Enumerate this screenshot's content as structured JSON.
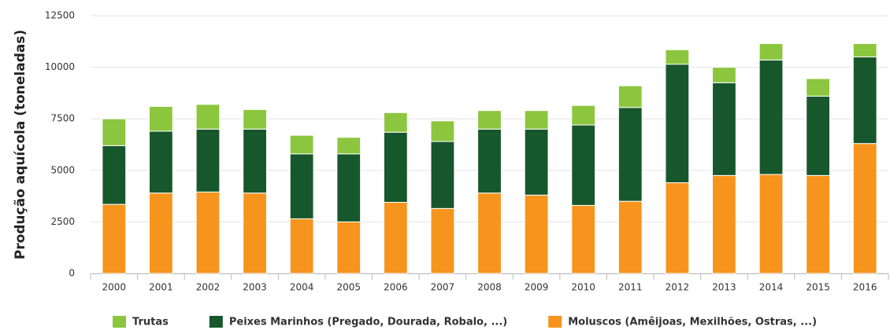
{
  "chart_data": {
    "type": "stacked_bar",
    "y_label": "Produção aquícola (toneladas)",
    "categories": [
      "2000",
      "2001",
      "2002",
      "2003",
      "2004",
      "2005",
      "2006",
      "2007",
      "2008",
      "2009",
      "2010",
      "2011",
      "2012",
      "2013",
      "2014",
      "2015",
      "2016"
    ],
    "series": [
      {
        "name": "Trutas",
        "color": "#8cc63e",
        "values": [
          1300,
          1200,
          1200,
          950,
          900,
          800,
          950,
          1000,
          900,
          900,
          950,
          1050,
          700,
          750,
          800,
          850,
          650
        ]
      },
      {
        "name": "Peixes Marinhos (Pregado, Dourada, Robalo, ...)",
        "color": "#17572c",
        "values": [
          2850,
          3000,
          3050,
          3100,
          3150,
          3300,
          3400,
          3250,
          3100,
          3200,
          3900,
          4550,
          5750,
          4500,
          5550,
          3850,
          4200
        ]
      },
      {
        "name": "Moluscos (Amêijoas, Mexilhões, Ostras, ...)",
        "color": "#f7941d",
        "values": [
          3350,
          3900,
          3950,
          3900,
          2650,
          2500,
          3450,
          3150,
          3900,
          3800,
          3300,
          3500,
          4400,
          4750,
          4800,
          4750,
          6300
        ]
      }
    ],
    "ylim": [
      0,
      12500
    ],
    "yticks": [
      0,
      2500,
      5000,
      7500,
      10000,
      12500
    ],
    "grid": true
  }
}
